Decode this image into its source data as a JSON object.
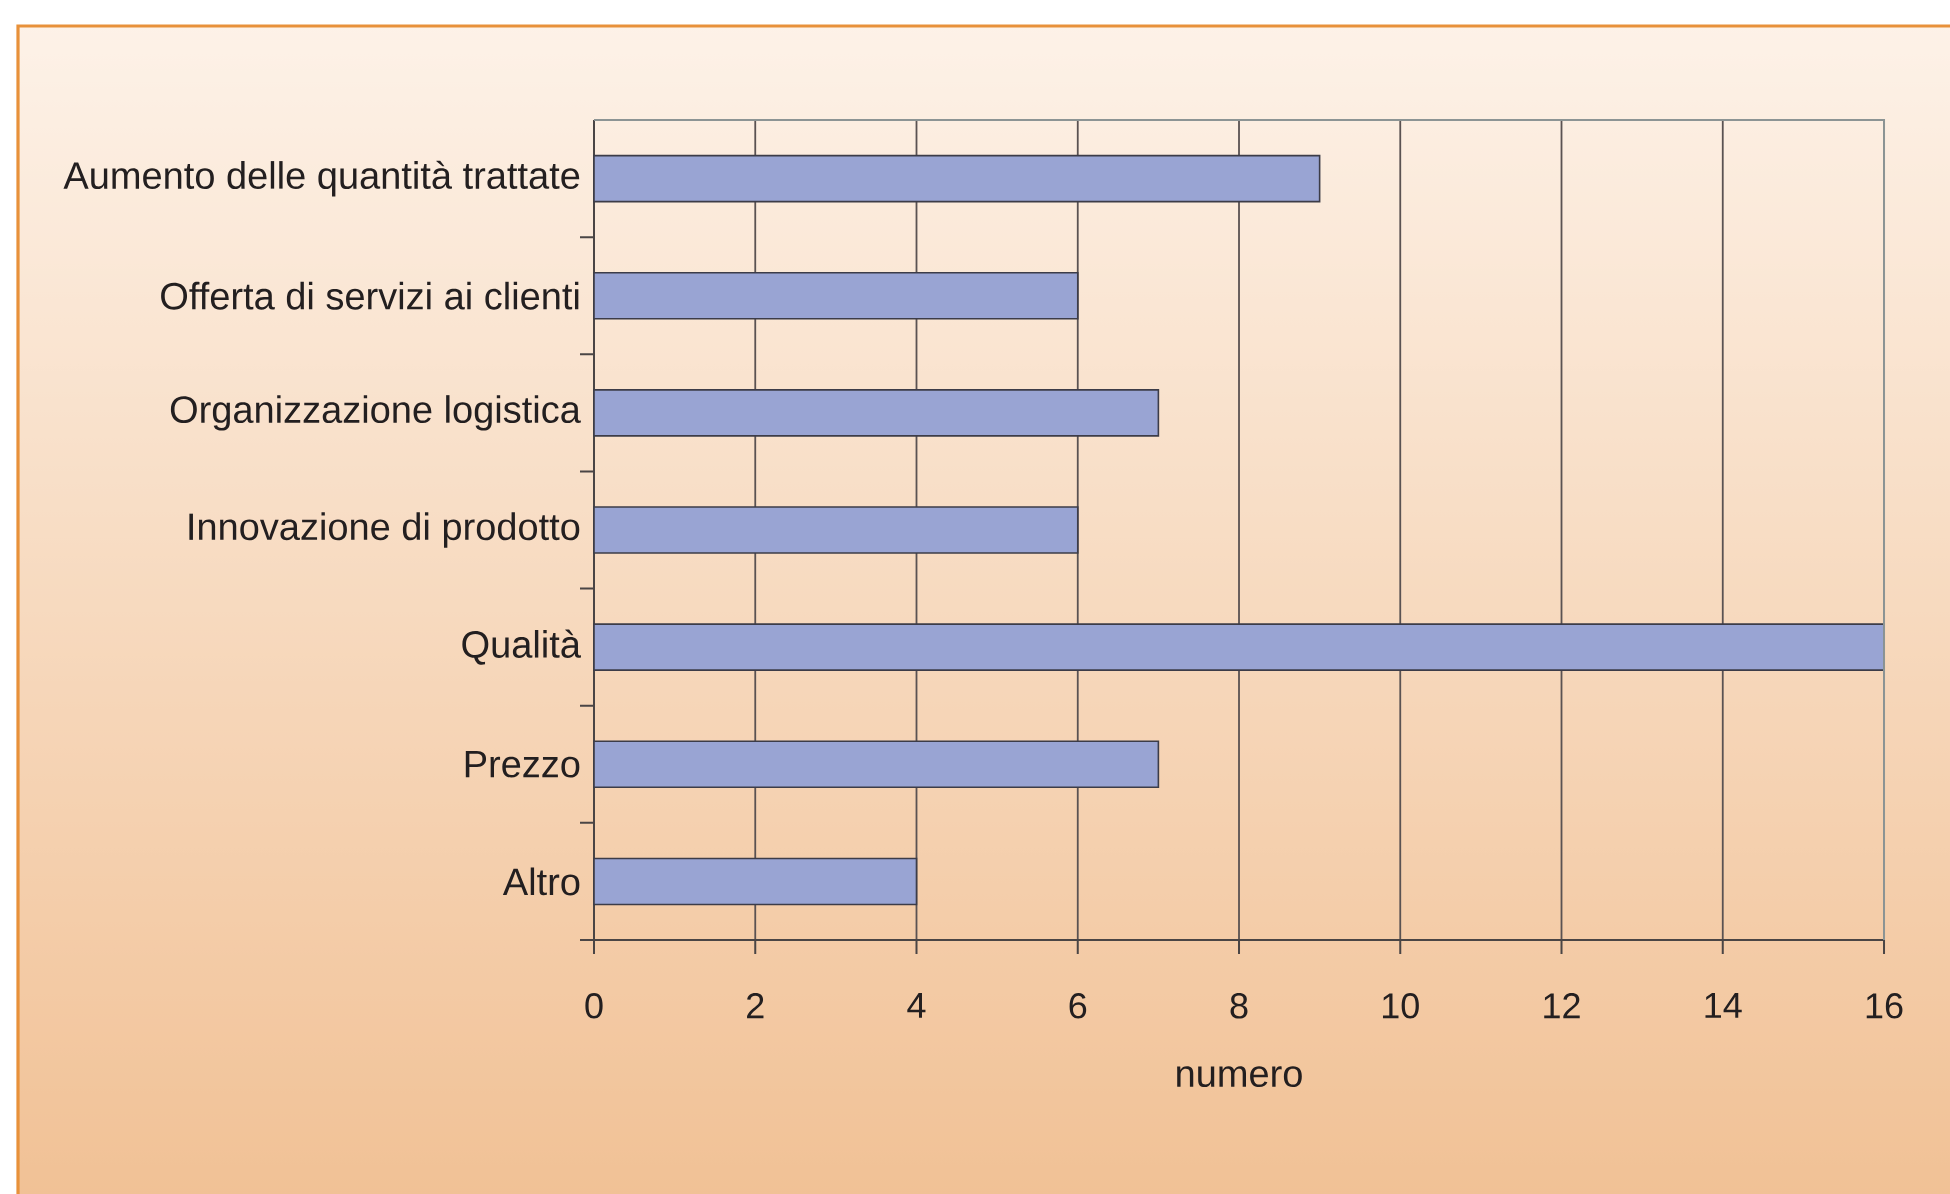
{
  "chart_data": {
    "type": "bar",
    "orientation": "horizontal",
    "categories": [
      "Aumento delle quantità trattate",
      "Offerta di servizi ai clienti",
      "Organizzazione logistica",
      "Innovazione di prodotto",
      "Qualità",
      "Prezzo",
      "Altro"
    ],
    "values": [
      9,
      6,
      7,
      6,
      16,
      7,
      4
    ],
    "color": "#99a4d3",
    "xlabel": "numero",
    "xlim": [
      0,
      16
    ],
    "xticks": [
      0,
      2,
      4,
      6,
      8,
      10,
      12,
      14,
      16
    ],
    "grid": "x"
  }
}
